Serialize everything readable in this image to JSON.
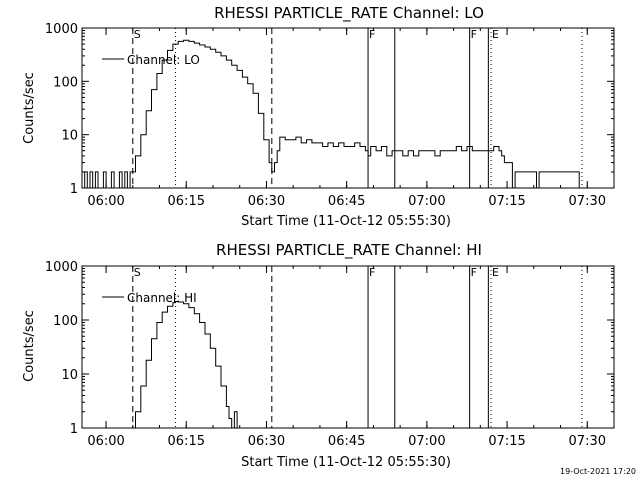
{
  "footer": {
    "timestamp": "19-Oct-2021 17:20"
  },
  "chart_data": [
    {
      "type": "line",
      "title": "RHESSI PARTICLE_RATE Channel: LO",
      "xlabel": "Start Time (11-Oct-12 05:55:30)",
      "ylabel": "Counts/sec",
      "x_unit": "minutes after 05:55:30",
      "xlim": [
        0,
        99.5
      ],
      "ylim": [
        1,
        1000
      ],
      "yscale": "log",
      "x_ticks": [
        {
          "x": 4.5,
          "label": "06:00"
        },
        {
          "x": 19.5,
          "label": "06:15"
        },
        {
          "x": 34.5,
          "label": "06:30"
        },
        {
          "x": 49.5,
          "label": "06:45"
        },
        {
          "x": 64.5,
          "label": "07:00"
        },
        {
          "x": 79.5,
          "label": "07:15"
        },
        {
          "x": 94.5,
          "label": "07:30"
        }
      ],
      "y_ticks": [
        {
          "y": 1,
          "label": "1"
        },
        {
          "y": 10,
          "label": "10"
        },
        {
          "y": 100,
          "label": "100"
        },
        {
          "y": 1000,
          "label": "1000"
        }
      ],
      "legend": {
        "label": "Channel: LO",
        "position": "top-left"
      },
      "markers": [
        {
          "x": 9.5,
          "style": "dashed",
          "label": "S"
        },
        {
          "x": 17.5,
          "style": "dotted",
          "label": ""
        },
        {
          "x": 35.5,
          "style": "dashed",
          "label": ""
        },
        {
          "x": 53.5,
          "style": "solid",
          "label": "F"
        },
        {
          "x": 58.5,
          "style": "solid",
          "label": ""
        },
        {
          "x": 72.5,
          "style": "solid",
          "label": "F"
        },
        {
          "x": 76.0,
          "style": "solid",
          "label": ""
        },
        {
          "x": 76.5,
          "style": "dotted",
          "label": "E"
        },
        {
          "x": 93.5,
          "style": "dotted",
          "label": ""
        }
      ],
      "series": [
        {
          "name": "Channel: LO",
          "points": [
            [
              0,
              1
            ],
            [
              0.5,
              2
            ],
            [
              1.0,
              1
            ],
            [
              1.5,
              2
            ],
            [
              2.0,
              1
            ],
            [
              2.5,
              2
            ],
            [
              3.0,
              1
            ],
            [
              3.5,
              1
            ],
            [
              4.0,
              2
            ],
            [
              4.5,
              1
            ],
            [
              5.0,
              1
            ],
            [
              5.5,
              2
            ],
            [
              6.0,
              1
            ],
            [
              6.5,
              1
            ],
            [
              7.0,
              2
            ],
            [
              7.5,
              1
            ],
            [
              8.0,
              2
            ],
            [
              8.5,
              1
            ],
            [
              9.0,
              2
            ],
            [
              9.5,
              2
            ],
            [
              10.0,
              4
            ],
            [
              11.0,
              10
            ],
            [
              12.0,
              28
            ],
            [
              13.0,
              70
            ],
            [
              14.0,
              140
            ],
            [
              15.0,
              250
            ],
            [
              16.0,
              380
            ],
            [
              17.0,
              500
            ],
            [
              18.0,
              560
            ],
            [
              19.0,
              590
            ],
            [
              20.0,
              560
            ],
            [
              21.0,
              520
            ],
            [
              22.0,
              480
            ],
            [
              23.0,
              440
            ],
            [
              24.0,
              400
            ],
            [
              25.0,
              350
            ],
            [
              26.0,
              300
            ],
            [
              27.0,
              250
            ],
            [
              28.0,
              200
            ],
            [
              29.0,
              160
            ],
            [
              30.0,
              120
            ],
            [
              31.0,
              90
            ],
            [
              32.0,
              60
            ],
            [
              33.0,
              25
            ],
            [
              34.0,
              8
            ],
            [
              35.0,
              3
            ],
            [
              35.5,
              2
            ],
            [
              36.0,
              3
            ],
            [
              36.5,
              5
            ],
            [
              37.0,
              9
            ],
            [
              38.0,
              8
            ],
            [
              39.0,
              8
            ],
            [
              40.0,
              9
            ],
            [
              41.0,
              7
            ],
            [
              42.0,
              8
            ],
            [
              43.0,
              7
            ],
            [
              44.0,
              7
            ],
            [
              45.0,
              6
            ],
            [
              46.0,
              7
            ],
            [
              47.0,
              6
            ],
            [
              48.0,
              7
            ],
            [
              49.0,
              6
            ],
            [
              50.0,
              6
            ],
            [
              51.0,
              7
            ],
            [
              52.0,
              6
            ],
            [
              53.0,
              5
            ],
            [
              53.5,
              4
            ],
            [
              54.0,
              6
            ],
            [
              55.0,
              5
            ],
            [
              56.0,
              6
            ],
            [
              57.0,
              4
            ],
            [
              58.0,
              5
            ],
            [
              59.0,
              5
            ],
            [
              60.0,
              4
            ],
            [
              61.0,
              5
            ],
            [
              62.0,
              4
            ],
            [
              63.0,
              5
            ],
            [
              64.0,
              5
            ],
            [
              65.0,
              5
            ],
            [
              66.0,
              4
            ],
            [
              67.0,
              5
            ],
            [
              68.0,
              5
            ],
            [
              69.0,
              5
            ],
            [
              70.0,
              6
            ],
            [
              71.0,
              5
            ],
            [
              72.0,
              6
            ],
            [
              73.0,
              5
            ],
            [
              74.0,
              5
            ],
            [
              75.0,
              5
            ],
            [
              76.0,
              5
            ],
            [
              77.0,
              6
            ],
            [
              78.0,
              5
            ],
            [
              78.5,
              4
            ],
            [
              79.0,
              3
            ],
            [
              80.0,
              3
            ],
            [
              80.5,
              1
            ],
            [
              81.0,
              2
            ],
            [
              82.0,
              2
            ],
            [
              83.0,
              2
            ],
            [
              84.0,
              2
            ],
            [
              85.0,
              1
            ],
            [
              85.5,
              2
            ],
            [
              86.0,
              2
            ],
            [
              87.0,
              2
            ],
            [
              88.0,
              2
            ],
            [
              89.0,
              2
            ],
            [
              90.0,
              2
            ],
            [
              91.0,
              2
            ],
            [
              92.0,
              2
            ],
            [
              93.0,
              1
            ]
          ]
        }
      ]
    },
    {
      "type": "line",
      "title": "RHESSI PARTICLE_RATE Channel: HI",
      "xlabel": "Start Time (11-Oct-12 05:55:30)",
      "ylabel": "Counts/sec",
      "x_unit": "minutes after 05:55:30",
      "xlim": [
        0,
        99.5
      ],
      "ylim": [
        1,
        1000
      ],
      "yscale": "log",
      "x_ticks": [
        {
          "x": 4.5,
          "label": "06:00"
        },
        {
          "x": 19.5,
          "label": "06:15"
        },
        {
          "x": 34.5,
          "label": "06:30"
        },
        {
          "x": 49.5,
          "label": "06:45"
        },
        {
          "x": 64.5,
          "label": "07:00"
        },
        {
          "x": 79.5,
          "label": "07:15"
        },
        {
          "x": 94.5,
          "label": "07:30"
        }
      ],
      "y_ticks": [
        {
          "y": 1,
          "label": "1"
        },
        {
          "y": 10,
          "label": "10"
        },
        {
          "y": 100,
          "label": "100"
        },
        {
          "y": 1000,
          "label": "1000"
        }
      ],
      "legend": {
        "label": "Channel: HI",
        "position": "top-left"
      },
      "markers": [
        {
          "x": 9.5,
          "style": "dashed",
          "label": "S"
        },
        {
          "x": 17.5,
          "style": "dotted",
          "label": ""
        },
        {
          "x": 35.5,
          "style": "dashed",
          "label": ""
        },
        {
          "x": 53.5,
          "style": "solid",
          "label": "F"
        },
        {
          "x": 58.5,
          "style": "solid",
          "label": ""
        },
        {
          "x": 72.5,
          "style": "solid",
          "label": "F"
        },
        {
          "x": 76.0,
          "style": "solid",
          "label": ""
        },
        {
          "x": 76.5,
          "style": "dotted",
          "label": "E"
        },
        {
          "x": 93.5,
          "style": "dotted",
          "label": ""
        }
      ],
      "series": [
        {
          "name": "Channel: HI",
          "points": [
            [
              9.5,
              1
            ],
            [
              10.0,
              2
            ],
            [
              11.0,
              6
            ],
            [
              12.0,
              18
            ],
            [
              13.0,
              45
            ],
            [
              14.0,
              90
            ],
            [
              15.0,
              140
            ],
            [
              16.0,
              180
            ],
            [
              17.0,
              210
            ],
            [
              17.5,
              220
            ],
            [
              18.0,
              215
            ],
            [
              19.0,
              200
            ],
            [
              20.0,
              170
            ],
            [
              21.0,
              130
            ],
            [
              22.0,
              90
            ],
            [
              23.0,
              55
            ],
            [
              24.0,
              30
            ],
            [
              25.0,
              14
            ],
            [
              26.0,
              6
            ],
            [
              27.0,
              2.5
            ],
            [
              27.5,
              1.5
            ],
            [
              28.0,
              1
            ],
            [
              28.5,
              2
            ],
            [
              29.0,
              1
            ]
          ]
        }
      ]
    }
  ]
}
